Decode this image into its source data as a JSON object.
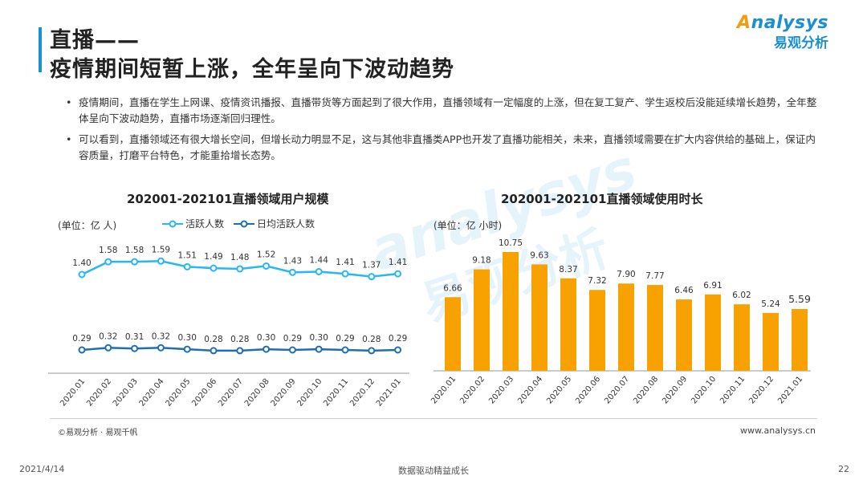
{
  "title": {
    "line1": "直播——",
    "line2": "疫情期间短暂上涨，全年呈向下波动趋势"
  },
  "logo": {
    "en_prefix": "",
    "en_o": "A",
    "en_rest": "nalysys",
    "cn": "易观分析",
    "watermark_en": "analysys",
    "watermark_cn": "易观分析"
  },
  "bullets": [
    "疫情期间，直播在学生上网课、疫情资讯播报、直播带货等方面起到了很大作用，直播领域有一定幅度的上涨，但在复工复产、学生返校后没能延续增长趋势，全年整体呈向下波动趋势，直播市场逐渐回归理性。",
    "可以看到，直播领域还有很大增长空间，但增长动力明显不足，这与其他非直播类APP也开发了直播功能相关，未来，直播领域需要在扩大内容供给的基础上，保证内容质量，打磨平台特色，才能重拾增长态势。"
  ],
  "bullet_symbol": "•",
  "colors": {
    "accent": "#1a90d2",
    "line_light": "#29b6f6",
    "line_dark": "#1f6fb0",
    "bar": "#f7a200",
    "watermark": "#9ad0ef"
  },
  "chart_data": [
    {
      "type": "line",
      "title": "202001-202101直播领域用户规模",
      "unit": "(单位：亿 人)",
      "categories": [
        "2020.01",
        "2020.02",
        "2020.03",
        "2020.04",
        "2020.05",
        "2020.06",
        "2020.07",
        "2020.08",
        "2020.09",
        "2020.10",
        "2020.11",
        "2020.12",
        "2021.01"
      ],
      "series": [
        {
          "name": "活跃人数",
          "values": [
            1.4,
            1.58,
            1.58,
            1.59,
            1.51,
            1.49,
            1.48,
            1.52,
            1.43,
            1.44,
            1.41,
            1.37,
            1.41
          ],
          "labels": [
            "1.40",
            "1.58",
            "1.58",
            "1.59",
            "1.51",
            "1.49",
            "1.48",
            "1.52",
            "1.43",
            "1.44",
            "1.41",
            "1.37",
            "1.41"
          ]
        },
        {
          "name": "日均活跃人数",
          "values": [
            0.29,
            0.32,
            0.31,
            0.32,
            0.3,
            0.28,
            0.28,
            0.3,
            0.29,
            0.3,
            0.29,
            0.28,
            0.29
          ],
          "labels": [
            "0.29",
            "0.32",
            "0.31",
            "0.32",
            "0.30",
            "0.28",
            "0.28",
            "0.30",
            "0.29",
            "0.30",
            "0.29",
            "0.28",
            "0.29"
          ]
        }
      ],
      "legend": "top"
    },
    {
      "type": "bar",
      "title": "202001-202101直播领域使用时长",
      "unit": "(单位：亿 小时)",
      "categories": [
        "2020.01",
        "2020.02",
        "2020.03",
        "2020.04",
        "2020.05",
        "2020.06",
        "2020.07",
        "2020.08",
        "2020.09",
        "2020.10",
        "2020.11",
        "2020.12",
        "2021.01"
      ],
      "values": [
        6.66,
        9.18,
        10.75,
        9.63,
        8.37,
        7.32,
        7.9,
        7.77,
        6.46,
        6.91,
        6.02,
        5.24,
        5.59
      ],
      "labels": [
        "6.66",
        "9.18",
        "10.75",
        "9.63",
        "8.37",
        "7.32",
        "7.90",
        "7.77",
        "6.46",
        "6.91",
        "6.02",
        "5.24",
        "5.59"
      ],
      "ylim": [
        0,
        11.5
      ]
    }
  ],
  "footer": {
    "source": "©易观分析 · 易观千帆",
    "website": "www.analysys.cn",
    "date": "2021/4/14",
    "slogan": "数据驱动精益成长",
    "page": "22"
  }
}
